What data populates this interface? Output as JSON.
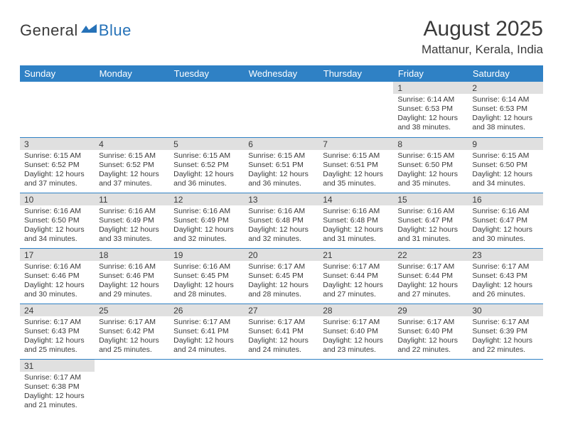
{
  "logo": {
    "part1": "General",
    "part2": "Blue"
  },
  "title": "August 2025",
  "location": "Mattanur, Kerala, India",
  "colors": {
    "header_bg": "#2f81c5",
    "header_text": "#ffffff",
    "daynum_bg": "#e0e0e0",
    "row_border": "#2f81c5",
    "body_text": "#3a3a3a",
    "logo_accent": "#2672b8"
  },
  "dow": [
    "Sunday",
    "Monday",
    "Tuesday",
    "Wednesday",
    "Thursday",
    "Friday",
    "Saturday"
  ],
  "weeks": [
    [
      null,
      null,
      null,
      null,
      null,
      {
        "n": "1",
        "sr": "6:14 AM",
        "ss": "6:53 PM",
        "dl": "12 hours and 38 minutes."
      },
      {
        "n": "2",
        "sr": "6:14 AM",
        "ss": "6:53 PM",
        "dl": "12 hours and 38 minutes."
      }
    ],
    [
      {
        "n": "3",
        "sr": "6:15 AM",
        "ss": "6:52 PM",
        "dl": "12 hours and 37 minutes."
      },
      {
        "n": "4",
        "sr": "6:15 AM",
        "ss": "6:52 PM",
        "dl": "12 hours and 37 minutes."
      },
      {
        "n": "5",
        "sr": "6:15 AM",
        "ss": "6:52 PM",
        "dl": "12 hours and 36 minutes."
      },
      {
        "n": "6",
        "sr": "6:15 AM",
        "ss": "6:51 PM",
        "dl": "12 hours and 36 minutes."
      },
      {
        "n": "7",
        "sr": "6:15 AM",
        "ss": "6:51 PM",
        "dl": "12 hours and 35 minutes."
      },
      {
        "n": "8",
        "sr": "6:15 AM",
        "ss": "6:50 PM",
        "dl": "12 hours and 35 minutes."
      },
      {
        "n": "9",
        "sr": "6:15 AM",
        "ss": "6:50 PM",
        "dl": "12 hours and 34 minutes."
      }
    ],
    [
      {
        "n": "10",
        "sr": "6:16 AM",
        "ss": "6:50 PM",
        "dl": "12 hours and 34 minutes."
      },
      {
        "n": "11",
        "sr": "6:16 AM",
        "ss": "6:49 PM",
        "dl": "12 hours and 33 minutes."
      },
      {
        "n": "12",
        "sr": "6:16 AM",
        "ss": "6:49 PM",
        "dl": "12 hours and 32 minutes."
      },
      {
        "n": "13",
        "sr": "6:16 AM",
        "ss": "6:48 PM",
        "dl": "12 hours and 32 minutes."
      },
      {
        "n": "14",
        "sr": "6:16 AM",
        "ss": "6:48 PM",
        "dl": "12 hours and 31 minutes."
      },
      {
        "n": "15",
        "sr": "6:16 AM",
        "ss": "6:47 PM",
        "dl": "12 hours and 31 minutes."
      },
      {
        "n": "16",
        "sr": "6:16 AM",
        "ss": "6:47 PM",
        "dl": "12 hours and 30 minutes."
      }
    ],
    [
      {
        "n": "17",
        "sr": "6:16 AM",
        "ss": "6:46 PM",
        "dl": "12 hours and 30 minutes."
      },
      {
        "n": "18",
        "sr": "6:16 AM",
        "ss": "6:46 PM",
        "dl": "12 hours and 29 minutes."
      },
      {
        "n": "19",
        "sr": "6:16 AM",
        "ss": "6:45 PM",
        "dl": "12 hours and 28 minutes."
      },
      {
        "n": "20",
        "sr": "6:17 AM",
        "ss": "6:45 PM",
        "dl": "12 hours and 28 minutes."
      },
      {
        "n": "21",
        "sr": "6:17 AM",
        "ss": "6:44 PM",
        "dl": "12 hours and 27 minutes."
      },
      {
        "n": "22",
        "sr": "6:17 AM",
        "ss": "6:44 PM",
        "dl": "12 hours and 27 minutes."
      },
      {
        "n": "23",
        "sr": "6:17 AM",
        "ss": "6:43 PM",
        "dl": "12 hours and 26 minutes."
      }
    ],
    [
      {
        "n": "24",
        "sr": "6:17 AM",
        "ss": "6:43 PM",
        "dl": "12 hours and 25 minutes."
      },
      {
        "n": "25",
        "sr": "6:17 AM",
        "ss": "6:42 PM",
        "dl": "12 hours and 25 minutes."
      },
      {
        "n": "26",
        "sr": "6:17 AM",
        "ss": "6:41 PM",
        "dl": "12 hours and 24 minutes."
      },
      {
        "n": "27",
        "sr": "6:17 AM",
        "ss": "6:41 PM",
        "dl": "12 hours and 24 minutes."
      },
      {
        "n": "28",
        "sr": "6:17 AM",
        "ss": "6:40 PM",
        "dl": "12 hours and 23 minutes."
      },
      {
        "n": "29",
        "sr": "6:17 AM",
        "ss": "6:40 PM",
        "dl": "12 hours and 22 minutes."
      },
      {
        "n": "30",
        "sr": "6:17 AM",
        "ss": "6:39 PM",
        "dl": "12 hours and 22 minutes."
      }
    ],
    [
      {
        "n": "31",
        "sr": "6:17 AM",
        "ss": "6:38 PM",
        "dl": "12 hours and 21 minutes."
      },
      null,
      null,
      null,
      null,
      null,
      null
    ]
  ],
  "labels": {
    "sunrise": "Sunrise:",
    "sunset": "Sunset:",
    "daylight": "Daylight:"
  }
}
